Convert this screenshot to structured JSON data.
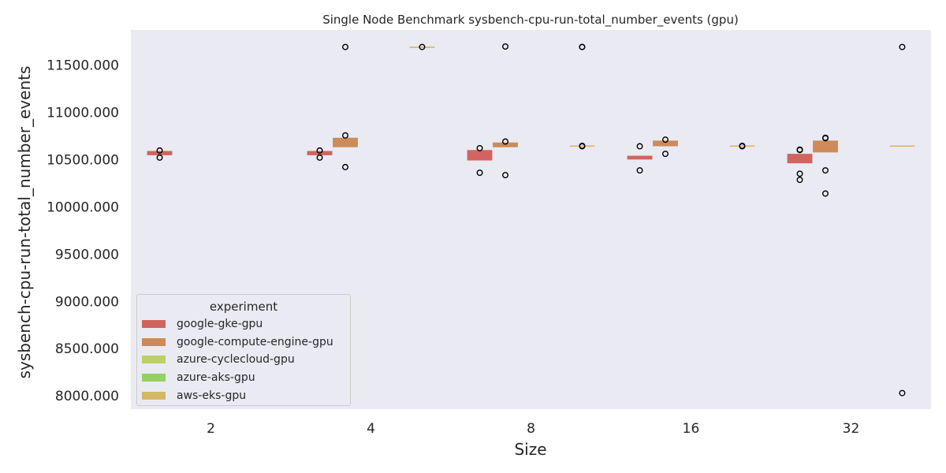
{
  "chart_data": {
    "type": "box",
    "title": "Single Node Benchmark sysbench-cpu-run-total_number_events (gpu)",
    "xlabel": "Size",
    "ylabel": "sysbench-cpu-run-total_number_events",
    "categories": [
      "2",
      "4",
      "8",
      "16",
      "32"
    ],
    "ylim": [
      7860,
      11870
    ],
    "yticks": [
      8000,
      8500,
      9000,
      9500,
      10000,
      10500,
      11000,
      11500
    ],
    "ytick_labels": [
      "8000.000",
      "8500.000",
      "9000.000",
      "9500.000",
      "10000.000",
      "10500.000",
      "11000.000",
      "11500.000"
    ],
    "grid": false,
    "legend": {
      "title": "experiment",
      "position": "lower-left"
    },
    "series": [
      {
        "name": "google-gke-gpu",
        "color": "#d1645e",
        "boxes": [
          {
            "category": "2",
            "q1": 10545,
            "median": 10570,
            "q3": 10590,
            "outliers": [
              10595,
              10520
            ]
          },
          {
            "category": "4",
            "q1": 10545,
            "median": 10565,
            "q3": 10590,
            "outliers": [
              10595,
              10520
            ]
          },
          {
            "category": "8",
            "q1": 10490,
            "median": 10560,
            "q3": 10600,
            "outliers": [
              10620,
              10360
            ]
          },
          {
            "category": "16",
            "q1": 10500,
            "median": 10520,
            "q3": 10540,
            "outliers": [
              10640,
              10385
            ]
          },
          {
            "category": "32",
            "q1": 10460,
            "median": 10520,
            "q3": 10560,
            "outliers": [
              10600,
              10605,
              10350,
              10285
            ]
          }
        ]
      },
      {
        "name": "google-compute-engine-gpu",
        "color": "#cd8b5a",
        "boxes": [
          {
            "category": "4",
            "q1": 10630,
            "median": 10700,
            "q3": 10730,
            "outliers": [
              10755,
              10420,
              11690
            ]
          },
          {
            "category": "8",
            "q1": 10630,
            "median": 10660,
            "q3": 10680,
            "outliers": [
              10690,
              10335,
              11695
            ]
          },
          {
            "category": "16",
            "q1": 10640,
            "median": 10680,
            "q3": 10700,
            "outliers": [
              10710,
              10560
            ]
          },
          {
            "category": "32",
            "q1": 10575,
            "median": 10650,
            "q3": 10700,
            "outliers": [
              10730,
              10725,
              10385,
              10140
            ]
          }
        ]
      },
      {
        "name": "azure-cyclecloud-gpu",
        "color": "#bdce6a",
        "boxes": []
      },
      {
        "name": "azure-aks-gpu",
        "color": "#94d162",
        "boxes": []
      },
      {
        "name": "aws-eks-gpu",
        "color": "#d4b866",
        "boxes": [
          {
            "category": "4",
            "q1": 11690,
            "median": 11690,
            "q3": 11690,
            "outliers": [
              11690
            ]
          },
          {
            "category": "8",
            "q1": 10645,
            "median": 10645,
            "q3": 10645,
            "outliers": [
              11690,
              11690,
              10640,
              10645
            ]
          },
          {
            "category": "16",
            "q1": 10645,
            "median": 10645,
            "q3": 10645,
            "outliers": [
              10640,
              10645
            ]
          },
          {
            "category": "32",
            "q1": 10645,
            "median": 10645,
            "q3": 10645,
            "outliers": [
              11690,
              8030
            ]
          }
        ]
      }
    ]
  }
}
